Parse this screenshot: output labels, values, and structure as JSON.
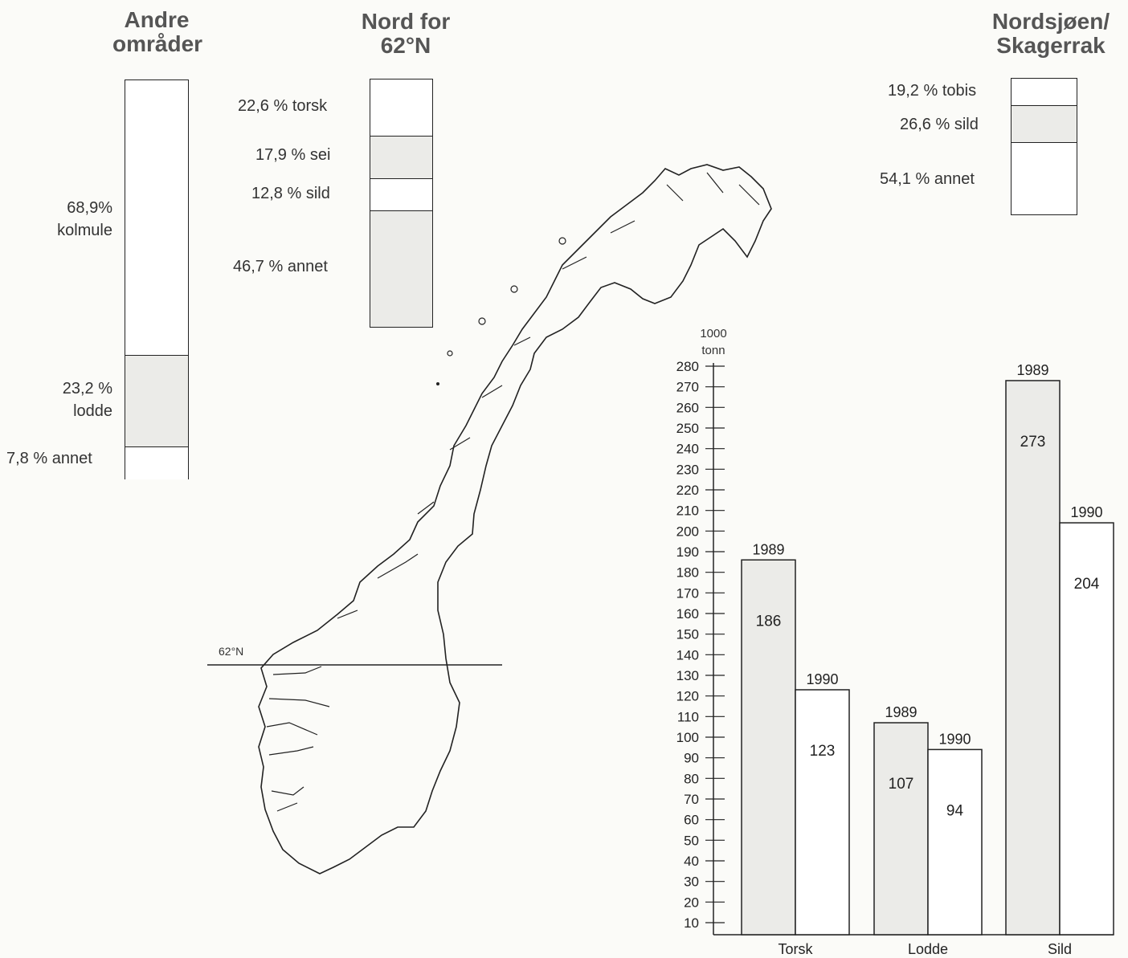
{
  "colors": {
    "shaded": "#ebebe8",
    "plain": "#ffffff",
    "line": "#222222"
  },
  "map": {
    "latitude_label": "62°N"
  },
  "stacks": [
    {
      "title_line1": "Andre",
      "title_line2": "områder",
      "segments": [
        {
          "percent": 68.9,
          "label_line1": "68,9%",
          "label_line2": "kolmule",
          "shaded": false
        },
        {
          "percent": 23.2,
          "label_line1": "23,2 %",
          "label_line2": "lodde",
          "shaded": true
        },
        {
          "percent": 7.8,
          "label_line1": "7,8 % annet",
          "label_line2": "",
          "shaded": false
        }
      ]
    },
    {
      "title_line1": "Nord for",
      "title_line2": "62°N",
      "segments": [
        {
          "percent": 22.6,
          "label_line1": "22,6 % torsk",
          "label_line2": "",
          "shaded": false
        },
        {
          "percent": 17.9,
          "label_line1": "17,9 % sei",
          "label_line2": "",
          "shaded": true
        },
        {
          "percent": 12.8,
          "label_line1": "12,8 % sild",
          "label_line2": "",
          "shaded": false
        },
        {
          "percent": 46.7,
          "label_line1": "46,7 % annet",
          "label_line2": "",
          "shaded": true
        }
      ]
    },
    {
      "title_line1": "Nordsjøen/",
      "title_line2": "Skagerrak",
      "segments": [
        {
          "percent": 19.2,
          "label_line1": "19,2 % tobis",
          "label_line2": "",
          "shaded": false
        },
        {
          "percent": 26.6,
          "label_line1": "26,6 % sild",
          "label_line2": "",
          "shaded": true
        },
        {
          "percent": 54.1,
          "label_line1": "54,1 % annet",
          "label_line2": "",
          "shaded": false
        }
      ]
    }
  ],
  "chart_data": {
    "type": "bar",
    "ylabel_line1": "1000",
    "ylabel_line2": "tonn",
    "ylim": [
      0,
      280
    ],
    "yticks": [
      10,
      20,
      30,
      40,
      50,
      60,
      70,
      80,
      90,
      100,
      110,
      120,
      130,
      140,
      150,
      160,
      170,
      180,
      190,
      200,
      210,
      220,
      230,
      240,
      250,
      260,
      270,
      280
    ],
    "categories": [
      "Torsk",
      "Lodde",
      "Sild"
    ],
    "series": [
      {
        "name": "1989",
        "values": [
          186,
          107,
          273
        ],
        "shaded": true
      },
      {
        "name": "1990",
        "values": [
          123,
          94,
          204
        ],
        "shaded": false
      }
    ],
    "value_labels": [
      [
        "186",
        "107",
        "273"
      ],
      [
        "123",
        "94",
        "204"
      ]
    ],
    "grid": false
  }
}
